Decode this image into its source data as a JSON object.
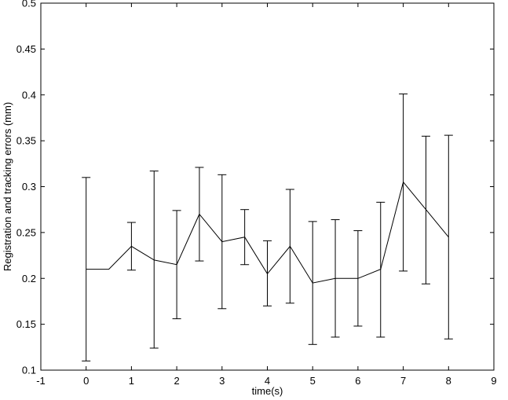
{
  "chart_data": {
    "type": "line",
    "title": "",
    "xlabel": "time(s)",
    "ylabel": "Registration and tracking errors (mm)",
    "xlim": [
      -1,
      9
    ],
    "ylim": [
      0.1,
      0.5
    ],
    "xticks": [
      -1,
      0,
      1,
      2,
      3,
      4,
      5,
      6,
      7,
      8,
      9
    ],
    "yticks": [
      0.1,
      0.15,
      0.2,
      0.25,
      0.3,
      0.35,
      0.4,
      0.45,
      0.5
    ],
    "xtick_labels": [
      "-1",
      "0",
      "1",
      "2",
      "3",
      "4",
      "5",
      "6",
      "7",
      "8",
      "9"
    ],
    "ytick_labels": [
      "0.1",
      "0.15",
      "0.2",
      "0.25",
      "0.3",
      "0.35",
      "0.4",
      "0.45",
      "0.5"
    ],
    "grid": false,
    "line_color": "#000000",
    "series": [
      {
        "x": [
          0,
          0.5,
          1,
          1.5,
          2,
          2.5,
          3,
          3.5,
          4,
          4.5,
          5,
          5.5,
          6,
          6.5,
          7,
          7.5,
          8
        ],
        "y": [
          0.21,
          0.21,
          0.235,
          0.22,
          0.215,
          0.27,
          0.24,
          0.245,
          0.205,
          0.235,
          0.195,
          0.2,
          0.2,
          0.21,
          0.305,
          0.275,
          0.245
        ],
        "error_lower": [
          0.11,
          null,
          0.209,
          0.124,
          0.156,
          0.219,
          0.167,
          0.215,
          0.17,
          0.173,
          0.128,
          0.136,
          0.148,
          0.136,
          0.208,
          0.194,
          0.134
        ],
        "error_upper": [
          0.31,
          null,
          0.261,
          0.317,
          0.274,
          0.321,
          0.313,
          0.275,
          0.241,
          0.297,
          0.262,
          0.264,
          0.252,
          0.283,
          0.401,
          0.355,
          0.356
        ]
      }
    ]
  }
}
